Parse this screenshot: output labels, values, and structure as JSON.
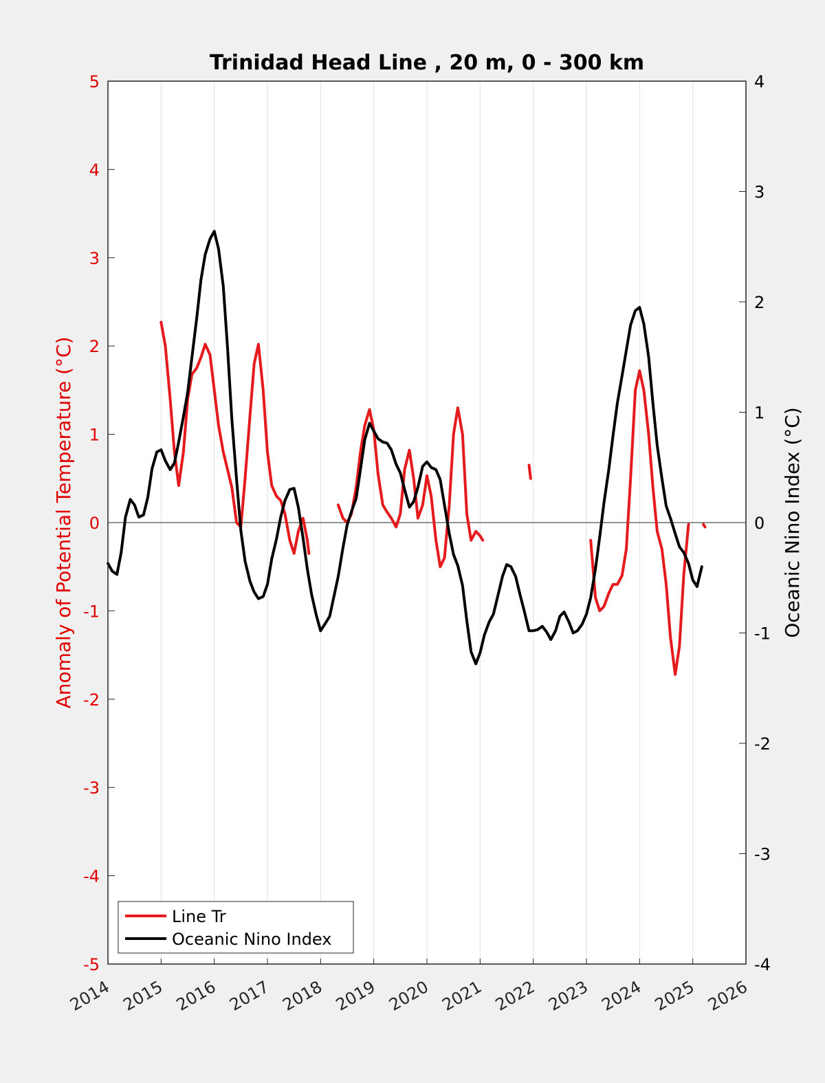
{
  "chart_data": {
    "type": "line",
    "title": "Trinidad Head Line , 20 m, 0 - 300 km",
    "ylabel_left": "Anomaly of Potential Temperature (°C)",
    "ylabel_right": "Oceanic Nino Index (°C)",
    "xlim": [
      2014,
      2026
    ],
    "ylim_left": [
      -5,
      5
    ],
    "ylim_right": [
      -4,
      4
    ],
    "x_ticks": [
      "2014",
      "2015",
      "2016",
      "2017",
      "2018",
      "2019",
      "2020",
      "2021",
      "2022",
      "2023",
      "2024",
      "2025",
      "2026"
    ],
    "y_ticks_left": [
      "-5",
      "-4",
      "-3",
      "-2",
      "-1",
      "0",
      "1",
      "2",
      "3",
      "4",
      "5"
    ],
    "y_ticks_right": [
      "-4",
      "-3",
      "-2",
      "-1",
      "0",
      "1",
      "2",
      "3",
      "4"
    ],
    "grid": "x",
    "legend_position": "bottom-left",
    "colors": {
      "left_axis": "#e00000",
      "line_tr": "#e41a1c",
      "oni": "#000000",
      "axes": "#262626"
    },
    "series": [
      {
        "name": "Line Tr",
        "axis": "left",
        "segments": [
          [
            [
              2015.0,
              2.27
            ],
            [
              2015.08,
              2.0
            ],
            [
              2015.17,
              1.4
            ],
            [
              2015.25,
              0.8
            ],
            [
              2015.33,
              0.42
            ],
            [
              2015.42,
              0.8
            ],
            [
              2015.5,
              1.4
            ],
            [
              2015.58,
              1.68
            ],
            [
              2015.67,
              1.75
            ],
            [
              2015.75,
              1.87
            ],
            [
              2015.83,
              2.02
            ],
            [
              2015.92,
              1.9
            ],
            [
              2016.0,
              1.5
            ],
            [
              2016.08,
              1.1
            ],
            [
              2016.17,
              0.8
            ],
            [
              2016.25,
              0.6
            ],
            [
              2016.33,
              0.4
            ],
            [
              2016.42,
              0.0
            ],
            [
              2016.5,
              -0.05
            ],
            [
              2016.58,
              0.5
            ],
            [
              2016.67,
              1.2
            ],
            [
              2016.75,
              1.8
            ],
            [
              2016.83,
              2.02
            ],
            [
              2016.92,
              1.5
            ],
            [
              2017.0,
              0.8
            ],
            [
              2017.08,
              0.42
            ],
            [
              2017.17,
              0.3
            ],
            [
              2017.25,
              0.25
            ],
            [
              2017.33,
              0.1
            ],
            [
              2017.42,
              -0.2
            ],
            [
              2017.5,
              -0.35
            ],
            [
              2017.58,
              -0.1
            ],
            [
              2017.67,
              0.05
            ],
            [
              2017.75,
              -0.2
            ],
            [
              2017.78,
              -0.35
            ]
          ],
          [
            [
              2018.33,
              0.2
            ],
            [
              2018.42,
              0.05
            ],
            [
              2018.5,
              0.0
            ],
            [
              2018.58,
              0.1
            ],
            [
              2018.67,
              0.4
            ],
            [
              2018.75,
              0.8
            ],
            [
              2018.83,
              1.1
            ],
            [
              2018.92,
              1.28
            ],
            [
              2019.0,
              1.05
            ],
            [
              2019.08,
              0.55
            ],
            [
              2019.17,
              0.2
            ],
            [
              2019.25,
              0.12
            ],
            [
              2019.33,
              0.05
            ],
            [
              2019.42,
              -0.05
            ],
            [
              2019.5,
              0.1
            ],
            [
              2019.58,
              0.6
            ],
            [
              2019.67,
              0.82
            ],
            [
              2019.75,
              0.5
            ],
            [
              2019.83,
              0.05
            ],
            [
              2019.92,
              0.2
            ],
            [
              2020.0,
              0.53
            ],
            [
              2020.08,
              0.3
            ],
            [
              2020.17,
              -0.2
            ],
            [
              2020.25,
              -0.5
            ],
            [
              2020.33,
              -0.4
            ],
            [
              2020.42,
              0.2
            ],
            [
              2020.5,
              1.0
            ],
            [
              2020.58,
              1.3
            ],
            [
              2020.67,
              1.0
            ],
            [
              2020.75,
              0.1
            ],
            [
              2020.83,
              -0.2
            ],
            [
              2020.92,
              -0.1
            ],
            [
              2021.0,
              -0.15
            ],
            [
              2021.05,
              -0.2
            ]
          ],
          [
            [
              2021.92,
              0.65
            ],
            [
              2021.95,
              0.5
            ]
          ],
          [
            [
              2023.08,
              -0.2
            ],
            [
              2023.17,
              -0.85
            ],
            [
              2023.25,
              -1.0
            ],
            [
              2023.33,
              -0.95
            ],
            [
              2023.42,
              -0.8
            ],
            [
              2023.5,
              -0.7
            ],
            [
              2023.58,
              -0.7
            ],
            [
              2023.67,
              -0.6
            ],
            [
              2023.75,
              -0.3
            ],
            [
              2023.83,
              0.5
            ],
            [
              2023.92,
              1.5
            ],
            [
              2024.0,
              1.72
            ],
            [
              2024.08,
              1.5
            ],
            [
              2024.17,
              1.0
            ],
            [
              2024.25,
              0.4
            ],
            [
              2024.33,
              -0.1
            ],
            [
              2024.42,
              -0.3
            ],
            [
              2024.5,
              -0.7
            ],
            [
              2024.58,
              -1.3
            ],
            [
              2024.67,
              -1.72
            ],
            [
              2024.75,
              -1.4
            ],
            [
              2024.83,
              -0.6
            ],
            [
              2024.92,
              -0.02
            ]
          ],
          [
            [
              2025.2,
              -0.02
            ],
            [
              2025.23,
              -0.05
            ]
          ]
        ]
      },
      {
        "name": "Oceanic Nino Index",
        "axis": "right",
        "segments": [
          [
            [
              2014.0,
              -0.37
            ],
            [
              2014.08,
              -0.44
            ],
            [
              2014.17,
              -0.47
            ],
            [
              2014.25,
              -0.27
            ],
            [
              2014.33,
              0.05
            ],
            [
              2014.42,
              0.21
            ],
            [
              2014.5,
              0.16
            ],
            [
              2014.58,
              0.05
            ],
            [
              2014.67,
              0.07
            ],
            [
              2014.75,
              0.23
            ],
            [
              2014.83,
              0.49
            ],
            [
              2014.92,
              0.64
            ],
            [
              2015.0,
              0.66
            ],
            [
              2015.08,
              0.56
            ],
            [
              2015.17,
              0.48
            ],
            [
              2015.25,
              0.54
            ],
            [
              2015.33,
              0.73
            ],
            [
              2015.42,
              0.96
            ],
            [
              2015.5,
              1.18
            ],
            [
              2015.58,
              1.5
            ],
            [
              2015.67,
              1.85
            ],
            [
              2015.75,
              2.2
            ],
            [
              2015.83,
              2.43
            ],
            [
              2015.92,
              2.57
            ],
            [
              2016.0,
              2.64
            ],
            [
              2016.08,
              2.48
            ],
            [
              2016.17,
              2.14
            ],
            [
              2016.25,
              1.58
            ],
            [
              2016.33,
              0.94
            ],
            [
              2016.42,
              0.39
            ],
            [
              2016.5,
              -0.07
            ],
            [
              2016.58,
              -0.35
            ],
            [
              2016.67,
              -0.53
            ],
            [
              2016.75,
              -0.63
            ],
            [
              2016.83,
              -0.69
            ],
            [
              2016.92,
              -0.67
            ],
            [
              2017.0,
              -0.56
            ],
            [
              2017.08,
              -0.33
            ],
            [
              2017.17,
              -0.15
            ],
            [
              2017.25,
              0.05
            ],
            [
              2017.33,
              0.2
            ],
            [
              2017.42,
              0.3
            ],
            [
              2017.5,
              0.31
            ],
            [
              2017.58,
              0.14
            ],
            [
              2017.67,
              -0.14
            ],
            [
              2017.75,
              -0.42
            ],
            [
              2017.83,
              -0.65
            ],
            [
              2017.92,
              -0.84
            ],
            [
              2018.0,
              -0.98
            ],
            [
              2018.08,
              -0.92
            ],
            [
              2018.17,
              -0.85
            ],
            [
              2018.25,
              -0.67
            ],
            [
              2018.33,
              -0.49
            ],
            [
              2018.42,
              -0.23
            ],
            [
              2018.5,
              -0.02
            ],
            [
              2018.58,
              0.1
            ],
            [
              2018.67,
              0.22
            ],
            [
              2018.75,
              0.48
            ],
            [
              2018.83,
              0.75
            ],
            [
              2018.92,
              0.9
            ],
            [
              2019.0,
              0.83
            ],
            [
              2019.08,
              0.76
            ],
            [
              2019.17,
              0.73
            ],
            [
              2019.25,
              0.72
            ],
            [
              2019.33,
              0.66
            ],
            [
              2019.42,
              0.53
            ],
            [
              2019.5,
              0.45
            ],
            [
              2019.58,
              0.3
            ],
            [
              2019.67,
              0.14
            ],
            [
              2019.75,
              0.19
            ],
            [
              2019.83,
              0.32
            ],
            [
              2019.92,
              0.51
            ],
            [
              2020.0,
              0.55
            ],
            [
              2020.08,
              0.5
            ],
            [
              2020.17,
              0.48
            ],
            [
              2020.25,
              0.39
            ],
            [
              2020.33,
              0.16
            ],
            [
              2020.42,
              -0.1
            ],
            [
              2020.5,
              -0.29
            ],
            [
              2020.58,
              -0.39
            ],
            [
              2020.67,
              -0.57
            ],
            [
              2020.75,
              -0.89
            ],
            [
              2020.83,
              -1.17
            ],
            [
              2020.92,
              -1.28
            ],
            [
              2021.0,
              -1.18
            ],
            [
              2021.08,
              -1.02
            ],
            [
              2021.17,
              -0.9
            ],
            [
              2021.25,
              -0.83
            ],
            [
              2021.33,
              -0.67
            ],
            [
              2021.42,
              -0.49
            ],
            [
              2021.5,
              -0.38
            ],
            [
              2021.58,
              -0.4
            ],
            [
              2021.67,
              -0.49
            ],
            [
              2021.75,
              -0.65
            ],
            [
              2021.83,
              -0.8
            ],
            [
              2021.92,
              -0.98
            ],
            [
              2022.0,
              -0.98
            ],
            [
              2022.08,
              -0.97
            ],
            [
              2022.17,
              -0.94
            ],
            [
              2022.25,
              -0.99
            ],
            [
              2022.33,
              -1.06
            ],
            [
              2022.42,
              -0.98
            ],
            [
              2022.5,
              -0.85
            ],
            [
              2022.58,
              -0.81
            ],
            [
              2022.67,
              -0.9
            ],
            [
              2022.75,
              -1.0
            ],
            [
              2022.83,
              -0.98
            ],
            [
              2022.92,
              -0.92
            ],
            [
              2023.0,
              -0.83
            ],
            [
              2023.08,
              -0.68
            ],
            [
              2023.17,
              -0.42
            ],
            [
              2023.25,
              -0.13
            ],
            [
              2023.33,
              0.18
            ],
            [
              2023.42,
              0.48
            ],
            [
              2023.5,
              0.79
            ],
            [
              2023.58,
              1.08
            ],
            [
              2023.67,
              1.33
            ],
            [
              2023.75,
              1.56
            ],
            [
              2023.83,
              1.79
            ],
            [
              2023.92,
              1.92
            ],
            [
              2024.0,
              1.95
            ],
            [
              2024.08,
              1.8
            ],
            [
              2024.17,
              1.5
            ],
            [
              2024.25,
              1.08
            ],
            [
              2024.33,
              0.7
            ],
            [
              2024.42,
              0.4
            ],
            [
              2024.5,
              0.15
            ],
            [
              2024.58,
              0.04
            ],
            [
              2024.67,
              -0.1
            ],
            [
              2024.75,
              -0.22
            ],
            [
              2024.83,
              -0.27
            ],
            [
              2024.92,
              -0.37
            ],
            [
              2025.0,
              -0.52
            ],
            [
              2025.08,
              -0.58
            ],
            [
              2025.17,
              -0.4
            ]
          ]
        ]
      }
    ]
  }
}
